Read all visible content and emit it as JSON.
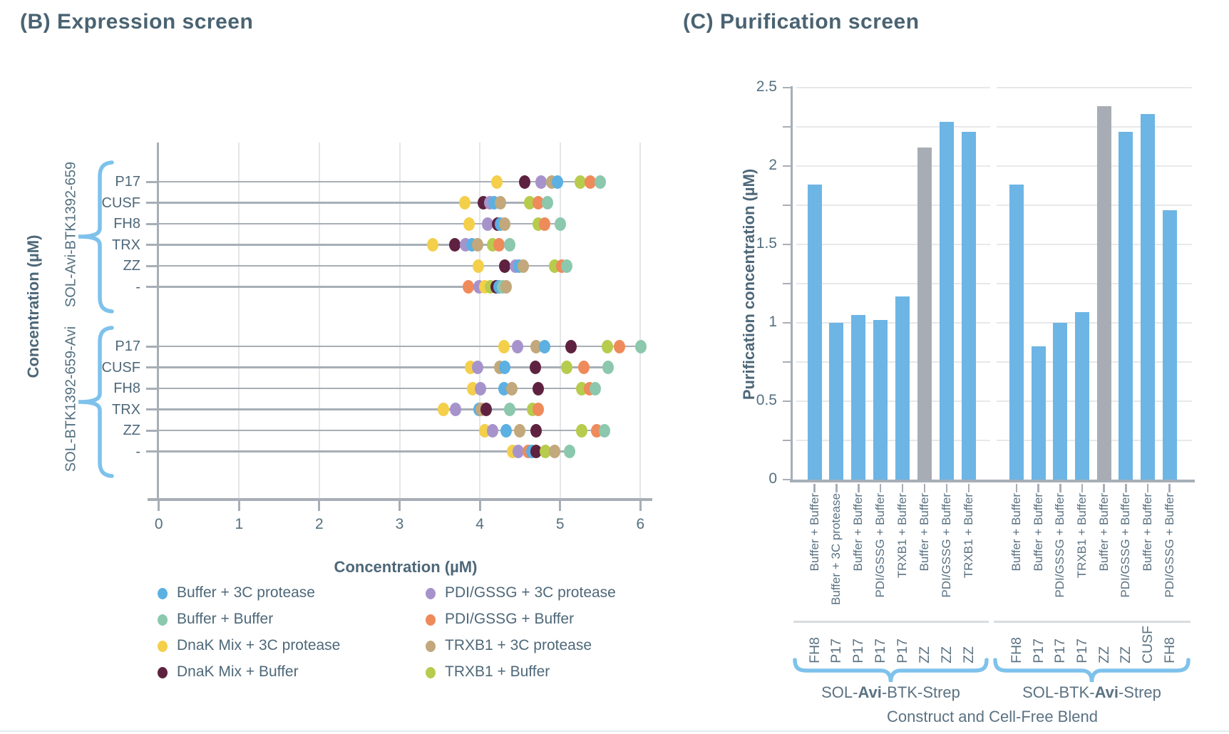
{
  "colors": {
    "title_text": "#4a6372",
    "label_text": "#54707f",
    "axis": "#a7aeb6",
    "grid": "#e4e6e9",
    "brace": "#7ec2ec",
    "separator": "#d9dce0",
    "bar_blue": "#6db5e4",
    "bar_gray": "#a8adb5",
    "bottom_rule": "#e6ebf0"
  },
  "legend": {
    "items": [
      {
        "label": "Buffer + 3C protease",
        "color": "#5cb0e2"
      },
      {
        "label": "Buffer + Buffer",
        "color": "#8bc8ad"
      },
      {
        "label": "DnaK Mix + 3C protease",
        "color": "#f4cf4a"
      },
      {
        "label": "DnaK Mix + Buffer",
        "color": "#5e2240"
      },
      {
        "label": "PDI/GSSG + 3C protease",
        "color": "#a793cb"
      },
      {
        "label": "PDI/GSSG + Buffer",
        "color": "#ef8a5b"
      },
      {
        "label": "TRXB1 + 3C protease",
        "color": "#c2a87b"
      },
      {
        "label": "TRXB1 + Buffer",
        "color": "#b7cb4d"
      }
    ]
  },
  "chart_data": [
    {
      "type": "scatter",
      "title": "(B) Expression screen",
      "xlabel": "Concentration (µM)",
      "ylabel": "Concentration (µM)",
      "xlim": [
        0,
        6
      ],
      "x_ticks": [
        "0",
        "1",
        "2",
        "3",
        "4",
        "5",
        "6"
      ],
      "grid": "vertical-major",
      "legend_position": "below",
      "series_names": [
        "Buffer + 3C protease",
        "Buffer + Buffer",
        "DnaK Mix + 3C protease",
        "DnaK Mix + Buffer",
        "PDI/GSSG + 3C protease",
        "PDI/GSSG + Buffer",
        "TRXB1 + 3C protease",
        "TRXB1 + Buffer"
      ],
      "series_colors": [
        "#5cb0e2",
        "#8bc8ad",
        "#f4cf4a",
        "#5e2240",
        "#a793cb",
        "#ef8a5b",
        "#c2a87b",
        "#b7cb4d"
      ],
      "groups": [
        {
          "label": "SOL-Avi-BTK1392-659",
          "rows": [
            {
              "category": "P17",
              "values": [
                4.97,
                5.5,
                4.21,
                4.56,
                4.76,
                5.38,
                4.9,
                5.25
              ]
            },
            {
              "category": "CUSF",
              "values": [
                4.18,
                4.84,
                3.81,
                4.04,
                4.12,
                4.73,
                4.26,
                4.62
              ]
            },
            {
              "category": "FH8",
              "values": [
                4.26,
                5.0,
                3.87,
                4.22,
                4.1,
                4.81,
                4.31,
                4.73
              ]
            },
            {
              "category": "TRX",
              "values": [
                3.9,
                4.37,
                3.41,
                3.69,
                3.82,
                4.24,
                3.97,
                4.16
              ]
            },
            {
              "category": "ZZ",
              "values": [
                4.49,
                5.08,
                3.98,
                4.31,
                4.44,
                5.02,
                4.54,
                4.93
              ]
            },
            {
              "category": "-",
              "values": [
                4.24,
                4.28,
                4.06,
                4.2,
                3.99,
                3.86,
                4.33,
                4.13
              ]
            }
          ]
        },
        {
          "label": "SOL-BTK1392-659-Avi",
          "rows": [
            {
              "category": "P17",
              "values": [
                4.81,
                6.01,
                4.3,
                5.14,
                4.47,
                5.74,
                4.7,
                5.59
              ]
            },
            {
              "category": "CUSF",
              "values": [
                4.31,
                5.6,
                3.88,
                4.69,
                3.97,
                5.3,
                4.25,
                5.08
              ]
            },
            {
              "category": "FH8",
              "values": [
                4.3,
                5.44,
                3.91,
                4.73,
                4.01,
                5.37,
                4.4,
                5.27
              ]
            },
            {
              "category": "TRX",
              "values": [
                3.99,
                4.37,
                3.55,
                4.08,
                3.7,
                4.73,
                4.02,
                4.66
              ]
            },
            {
              "category": "ZZ",
              "values": [
                4.33,
                5.55,
                4.06,
                4.7,
                4.16,
                5.46,
                4.5,
                5.27
              ]
            },
            {
              "category": "-",
              "values": [
                4.65,
                5.12,
                4.41,
                4.7,
                4.48,
                4.6,
                4.93,
                4.82
              ]
            }
          ]
        }
      ]
    },
    {
      "type": "bar",
      "title": "(C) Purification screen",
      "xlabel": "Construct and Cell-Free Blend",
      "ylabel": "Purification concentration (µM)",
      "ylim": [
        0,
        2.5
      ],
      "y_tick_labels": [
        "0",
        "0.5",
        "1",
        "1.5",
        "2",
        "2.5"
      ],
      "y_minor_step": 0.25,
      "grid": "horizontal-minor",
      "groups": [
        {
          "label_parts": [
            "SOL-",
            "Avi",
            "-BTK-Strep"
          ],
          "bars": [
            {
              "blend": "Buffer + Buffer",
              "construct": "FH8",
              "value": 1.88,
              "gray": false
            },
            {
              "blend": "Buffer + 3C protease",
              "construct": "P17",
              "value": 1.0,
              "gray": false
            },
            {
              "blend": "Buffer + Buffer",
              "construct": "P17",
              "value": 1.05,
              "gray": false
            },
            {
              "blend": "PDI/GSSG + Buffer",
              "construct": "P17",
              "value": 1.02,
              "gray": false
            },
            {
              "blend": "TRXB1 + Buffer",
              "construct": "P17",
              "value": 1.17,
              "gray": false
            },
            {
              "blend": "Buffer + Buffer",
              "construct": "ZZ",
              "value": 2.12,
              "gray": true
            },
            {
              "blend": "PDI/GSSG + Buffer",
              "construct": "ZZ",
              "value": 2.28,
              "gray": false
            },
            {
              "blend": "TRXB1 + Buffer",
              "construct": "ZZ",
              "value": 2.22,
              "gray": false
            }
          ]
        },
        {
          "label_parts": [
            "SOL-BTK-",
            "Avi",
            "-Strep"
          ],
          "bars": [
            {
              "blend": "Buffer + Buffer",
              "construct": "FH8",
              "value": 1.88,
              "gray": false
            },
            {
              "blend": "Buffer + Buffer",
              "construct": "P17",
              "value": 0.85,
              "gray": false
            },
            {
              "blend": "PDI/GSSG + Buffer",
              "construct": "P17",
              "value": 1.0,
              "gray": false
            },
            {
              "blend": "TRXB1 + Buffer",
              "construct": "P17",
              "value": 1.07,
              "gray": false
            },
            {
              "blend": "Buffer + Buffer",
              "construct": "ZZ",
              "value": 2.38,
              "gray": true
            },
            {
              "blend": "PDI/GSSG + Buffer",
              "construct": "ZZ",
              "value": 2.22,
              "gray": false
            },
            {
              "blend": "Buffer + Buffer",
              "construct": "CUSF",
              "value": 2.33,
              "gray": false
            },
            {
              "blend": "PDI/GSSG + Buffer",
              "construct": "FH8",
              "value": 1.72,
              "gray": false
            }
          ]
        }
      ]
    }
  ]
}
